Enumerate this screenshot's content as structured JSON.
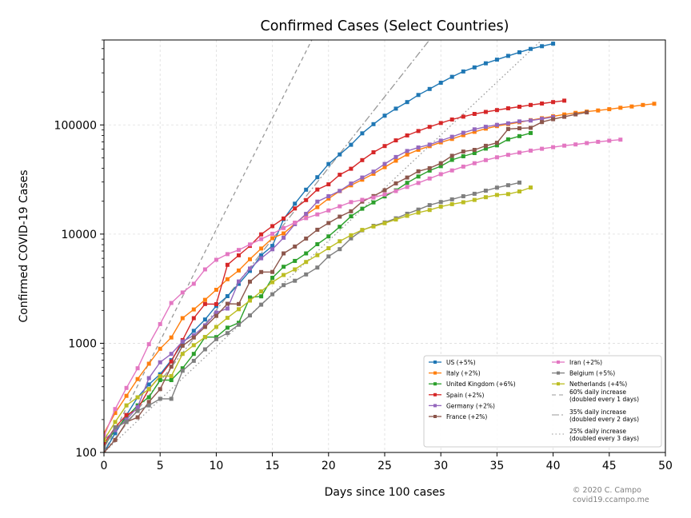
{
  "chart_data": {
    "type": "line",
    "title": "Confirmed Cases (Select Countries)",
    "xlabel": "Days since 100 cases",
    "ylabel": "Confirmed COVID-19 Cases",
    "y_scale": "log",
    "xlim": [
      0,
      50
    ],
    "ylim": [
      100,
      600000
    ],
    "x_ticks": [
      0,
      5,
      10,
      15,
      20,
      25,
      30,
      35,
      40,
      45,
      50
    ],
    "y_ticks": [
      100,
      1000,
      10000,
      100000
    ],
    "y_tick_labels": [
      "100",
      "1000",
      "10000",
      "100000"
    ],
    "grid": true,
    "legend_position": "lower-right",
    "footer": [
      "© 2020 C. Campo",
      "covid19.ccampo.me"
    ],
    "series": [
      {
        "name": "US (+5%)",
        "color": "#1f77b4",
        "values": [
          100,
          150,
          220,
          320,
          420,
          520,
          700,
          1000,
          1300,
          1650,
          2200,
          2700,
          3500,
          4600,
          6400,
          7800,
          13700,
          19000,
          25500,
          33200,
          43800,
          53700,
          65800,
          83800,
          101700,
          121500,
          140900,
          161800,
          188200,
          213400,
          243600,
          275600,
          308800,
          336800,
          366700,
          396200,
          429100,
          462800,
          496500,
          526400,
          555300
        ]
      },
      {
        "name": "Italy (+2%)",
        "color": "#ff7f0e",
        "values": [
          150,
          230,
          330,
          470,
          650,
          890,
          1130,
          1700,
          2040,
          2500,
          3090,
          3860,
          4640,
          5880,
          7380,
          9170,
          10150,
          12460,
          15110,
          17660,
          21160,
          24750,
          27980,
          31510,
          35710,
          41040,
          47020,
          53580,
          59140,
          63930,
          69180,
          74390,
          80590,
          86500,
          92470,
          97690,
          101740,
          105790,
          110570,
          115240,
          119830,
          124630,
          128950,
          132550,
          135590,
          139420,
          143630,
          147580,
          152270,
          156360
        ]
      },
      {
        "name": "United Kingdom (+6%)",
        "color": "#2ca02c",
        "values": [
          115,
          160,
          210,
          270,
          320,
          460,
          460,
          590,
          800,
          1140,
          1140,
          1390,
          1540,
          2630,
          2690,
          3980,
          5020,
          5680,
          6650,
          8080,
          9530,
          11660,
          14540,
          17090,
          19520,
          22140,
          25150,
          29470,
          33720,
          38170,
          41900,
          47810,
          51610,
          55240,
          60730,
          65080,
          73760,
          78990,
          84280
        ]
      },
      {
        "name": "Spain (+2%)",
        "color": "#d62728",
        "values": [
          120,
          170,
          220,
          250,
          380,
          500,
          680,
          1070,
          1700,
          2290,
          2280,
          5230,
          6390,
          7800,
          9940,
          11830,
          13900,
          17180,
          20500,
          25600,
          28570,
          34990,
          39670,
          47610,
          56190,
          64060,
          72250,
          80110,
          87960,
          95920,
          104120,
          112070,
          119200,
          126170,
          131650,
          136680,
          141940,
          146690,
          152450,
          157020,
          161850,
          166830
        ]
      },
      {
        "name": "Germany (+2%)",
        "color": "#9467bd",
        "values": [
          130,
          160,
          200,
          260,
          480,
          670,
          800,
          1040,
          1180,
          1460,
          1910,
          2080,
          3680,
          4840,
          6010,
          7270,
          9260,
          12330,
          15320,
          19850,
          22210,
          24870,
          29060,
          32990,
          37320,
          43940,
          50870,
          57690,
          62100,
          66020,
          71800,
          77870,
          84790,
          91160,
          96090,
          100120,
          103370,
          107660,
          109760,
          113530,
          118180
        ]
      },
      {
        "name": "France (+2%)",
        "color": "#8c564b",
        "values": [
          100,
          130,
          190,
          210,
          290,
          380,
          610,
          950,
          1130,
          1410,
          1780,
          2300,
          2290,
          3670,
          4490,
          4500,
          6650,
          7690,
          9110,
          10970,
          12620,
          14460,
          16180,
          19860,
          22300,
          25230,
          29160,
          32960,
          37570,
          40170,
          44550,
          52130,
          56990,
          59110,
          64340,
          68610,
          91650,
          93180,
          94110,
          106210,
          112950,
          118760,
          124870,
          130250
        ]
      },
      {
        "name": "Iran (+2%)",
        "color": "#e377c2",
        "values": [
          140,
          250,
          390,
          590,
          980,
          1500,
          2340,
          2920,
          3510,
          4750,
          5820,
          6560,
          7160,
          8040,
          9000,
          10070,
          11360,
          12730,
          14000,
          15160,
          16450,
          17960,
          19640,
          20610,
          21640,
          23050,
          24810,
          27010,
          29400,
          32330,
          35400,
          38300,
          41500,
          44600,
          47600,
          50460,
          53180,
          55740,
          58230,
          60500,
          62590,
          64590,
          66220,
          68190,
          70030,
          71690,
          73300
        ]
      },
      {
        "name": "Belgium (+5%)",
        "color": "#7f7f7f",
        "values": [
          110,
          170,
          190,
          240,
          270,
          310,
          310,
          560,
          690,
          880,
          1090,
          1240,
          1480,
          1800,
          2260,
          2810,
          3410,
          3740,
          4270,
          4940,
          6240,
          7280,
          9130,
          10840,
          11900,
          12780,
          13960,
          15350,
          16770,
          18430,
          19690,
          20810,
          22200,
          23400,
          24980,
          26670,
          28020,
          29650
        ]
      },
      {
        "name": "Netherlands (+4%)",
        "color": "#bcbd22",
        "values": [
          130,
          190,
          270,
          320,
          380,
          500,
          500,
          800,
          960,
          1140,
          1410,
          1710,
          2050,
          2460,
          2990,
          3630,
          4220,
          4750,
          5560,
          6410,
          7430,
          8600,
          9760,
          10930,
          11750,
          12590,
          13610,
          14700,
          15720,
          16630,
          17850,
          18800,
          19580,
          20550,
          21760,
          22820,
          23250,
          24570,
          26710
        ]
      }
    ],
    "reference_lines": [
      {
        "name": "60% daily increase\n(doubled every 1 days)",
        "growth_rate": 0.6,
        "style": "dashed"
      },
      {
        "name": "35% daily increase\n(doubled every 2 days)",
        "growth_rate": 0.35,
        "style": "dashdot"
      },
      {
        "name": "25% daily increase\n(doubled every 3 days)",
        "growth_rate": 0.25,
        "style": "dotted"
      }
    ]
  }
}
